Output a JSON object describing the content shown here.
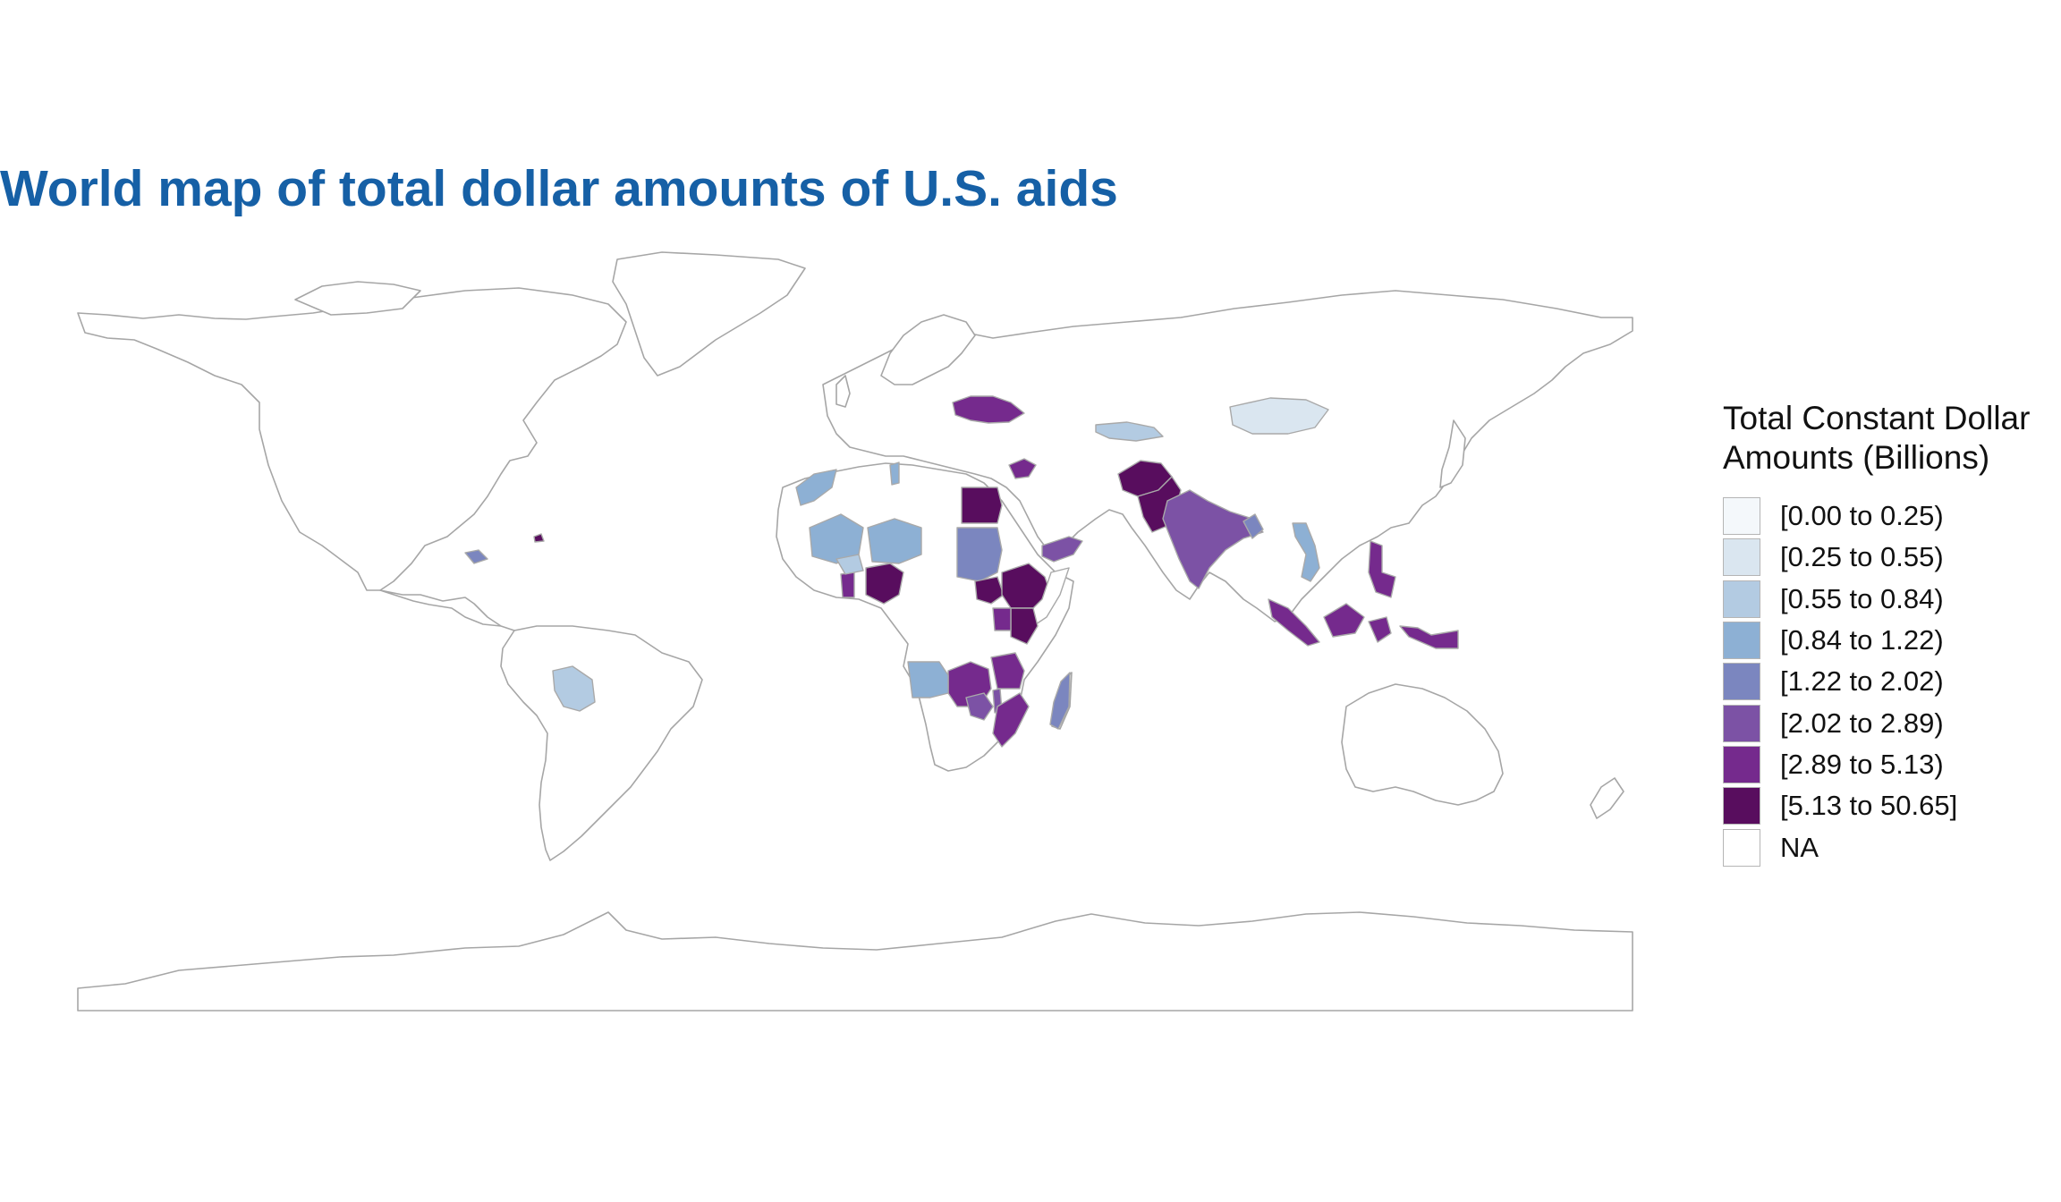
{
  "title": "World map of total dollar amounts of U.S. aids",
  "legend": {
    "title_line1": "Total Constant Dollar",
    "title_line2": "Amounts (Billions)",
    "items": [
      {
        "label": "[0.00 to 0.25)",
        "color": "#f4f8fb"
      },
      {
        "label": "[0.25 to 0.55)",
        "color": "#dae6f0"
      },
      {
        "label": "[0.55 to 0.84)",
        "color": "#b3cbe2"
      },
      {
        "label": "[0.84 to 1.22)",
        "color": "#8db0d4"
      },
      {
        "label": "[1.22 to 2.02)",
        "color": "#7b86bf"
      },
      {
        "label": "[2.02 to 2.89)",
        "color": "#7c52a5"
      },
      {
        "label": "[2.89 to 5.13)",
        "color": "#752a8d"
      },
      {
        "label": "[5.13 to 50.65]",
        "color": "#580d5e"
      },
      {
        "label": "NA",
        "color": "#ffffff"
      }
    ]
  },
  "map_data": {
    "type": "choropleth",
    "projection": "equirectangular",
    "regions": [
      {
        "name": "Afghanistan",
        "class": "[5.13 to 50.65]"
      },
      {
        "name": "Pakistan",
        "class": "[5.13 to 50.65]"
      },
      {
        "name": "Egypt",
        "class": "[5.13 to 50.65]"
      },
      {
        "name": "Nigeria",
        "class": "[5.13 to 50.65]"
      },
      {
        "name": "Ethiopia",
        "class": "[5.13 to 50.65]"
      },
      {
        "name": "Kenya",
        "class": "[5.13 to 50.65]"
      },
      {
        "name": "South Sudan",
        "class": "[5.13 to 50.65]"
      },
      {
        "name": "Haiti",
        "class": "[5.13 to 50.65]"
      },
      {
        "name": "Ukraine",
        "class": "[2.89 to 5.13)"
      },
      {
        "name": "Jordan",
        "class": "[2.89 to 5.13)"
      },
      {
        "name": "Tanzania",
        "class": "[2.89 to 5.13)"
      },
      {
        "name": "DR Congo",
        "class": "[2.89 to 5.13)"
      },
      {
        "name": "Mozambique",
        "class": "[2.89 to 5.13)"
      },
      {
        "name": "Indonesia",
        "class": "[2.89 to 5.13)"
      },
      {
        "name": "Philippines",
        "class": "[2.89 to 5.13)"
      },
      {
        "name": "Ghana",
        "class": "[2.89 to 5.13)"
      },
      {
        "name": "Uganda",
        "class": "[2.89 to 5.13)"
      },
      {
        "name": "India",
        "class": "[2.02 to 2.89)"
      },
      {
        "name": "Yemen",
        "class": "[2.02 to 2.89)"
      },
      {
        "name": "Zambia",
        "class": "[2.02 to 2.89)"
      },
      {
        "name": "Malawi",
        "class": "[2.02 to 2.89)"
      },
      {
        "name": "Sudan",
        "class": "[1.22 to 2.02)"
      },
      {
        "name": "Madagascar",
        "class": "[1.22 to 2.02)"
      },
      {
        "name": "Bangladesh",
        "class": "[1.22 to 2.02)"
      },
      {
        "name": "Honduras",
        "class": "[1.22 to 2.02)"
      },
      {
        "name": "Angola",
        "class": "[0.84 to 1.22)"
      },
      {
        "name": "Mali",
        "class": "[0.84 to 1.22)"
      },
      {
        "name": "Niger",
        "class": "[0.84 to 1.22)"
      },
      {
        "name": "Chad",
        "class": "[0.84 to 1.22)"
      },
      {
        "name": "Morocco",
        "class": "[0.84 to 1.22)"
      },
      {
        "name": "Tunisia",
        "class": "[0.84 to 1.22)"
      },
      {
        "name": "Vietnam",
        "class": "[0.84 to 1.22)"
      },
      {
        "name": "Bolivia",
        "class": "[0.55 to 0.84)"
      },
      {
        "name": "Kyrgyzstan",
        "class": "[0.55 to 0.84)"
      },
      {
        "name": "Burkina Faso",
        "class": "[0.55 to 0.84)"
      },
      {
        "name": "Mongolia",
        "class": "[0.25 to 0.55)"
      }
    ]
  }
}
